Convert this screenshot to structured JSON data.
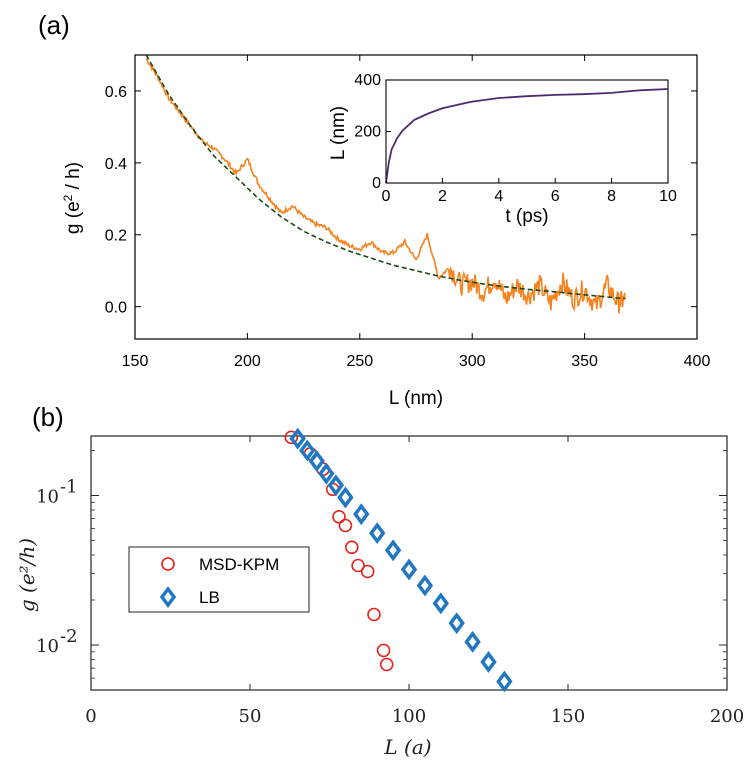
{
  "panel_a": {
    "label": "(a)",
    "main": {
      "xlabel": "L (nm)",
      "ylabel_prefix": "g (e",
      "ylabel_sup": "2",
      "ylabel_suffix": " / h)",
      "xlim": [
        150,
        400
      ],
      "ylim": [
        -0.09,
        0.7
      ],
      "xticks": [
        "150",
        "200",
        "250",
        "300",
        "350",
        "400"
      ],
      "yticks": [
        "0.0",
        "0.2",
        "0.4",
        "0.6"
      ]
    },
    "inset": {
      "xlabel": "t (ps)",
      "ylabel": "L (nm)",
      "xlim": [
        0,
        10
      ],
      "ylim": [
        0,
        400
      ],
      "xticks": [
        "0",
        "2",
        "4",
        "6",
        "8",
        "10"
      ],
      "yticks": [
        "0",
        "200",
        "400"
      ]
    }
  },
  "panel_b": {
    "label": "(b)",
    "xlabel": "L (a)",
    "ylabel": "g (e²/h)",
    "xticks": [
      "0",
      "50",
      "100",
      "150",
      "200"
    ],
    "ytick_base": "10",
    "ytick_exps": [
      "-1",
      "-2"
    ],
    "legend": [
      "MSD-KPM",
      "LB"
    ]
  },
  "colors": {
    "orange": "#f7821e",
    "fit": "#1a4a1a",
    "inset_line": "#4f2a6e",
    "msd": "#e8241e",
    "lb": "#1f78c1"
  },
  "chart_data": [
    {
      "type": "line",
      "title": "",
      "xlabel": "L (nm)",
      "ylabel": "g (e^2 / h)",
      "xlim": [
        150,
        400
      ],
      "ylim": [
        -0.09,
        0.7
      ],
      "series": [
        {
          "name": "simulation",
          "x": [
            155,
            160,
            165,
            170,
            175,
            180,
            185,
            190,
            195,
            200,
            205,
            210,
            215,
            220,
            225,
            230,
            235,
            240,
            245,
            250,
            255,
            260,
            265,
            270,
            275,
            280,
            285,
            290,
            295,
            300,
            305,
            310,
            315,
            320,
            325,
            330,
            335,
            340,
            345,
            350,
            355,
            360,
            365,
            368
          ],
          "y": [
            0.69,
            0.64,
            0.58,
            0.54,
            0.5,
            0.46,
            0.44,
            0.41,
            0.37,
            0.41,
            0.34,
            0.3,
            0.26,
            0.28,
            0.25,
            0.23,
            0.22,
            0.19,
            0.17,
            0.16,
            0.18,
            0.15,
            0.15,
            0.18,
            0.13,
            0.2,
            0.08,
            0.11,
            0.06,
            0.07,
            0.04,
            0.08,
            0.02,
            0.06,
            0.03,
            0.06,
            0.01,
            0.07,
            0.02,
            0.05,
            0.0,
            0.06,
            0.01,
            0.02
          ]
        },
        {
          "name": "fit",
          "style": "dashed",
          "x": [
            155,
            165,
            175,
            185,
            195,
            205,
            215,
            225,
            235,
            245,
            255,
            265,
            275,
            285,
            295,
            305,
            315,
            325,
            335,
            345,
            355,
            368
          ],
          "y": [
            0.7,
            0.59,
            0.5,
            0.42,
            0.36,
            0.3,
            0.25,
            0.21,
            0.18,
            0.155,
            0.135,
            0.115,
            0.1,
            0.085,
            0.073,
            0.063,
            0.055,
            0.048,
            0.042,
            0.036,
            0.03,
            0.022
          ]
        }
      ]
    },
    {
      "type": "line",
      "title": "inset",
      "xlabel": "t (ps)",
      "ylabel": "L (nm)",
      "xlim": [
        0,
        10
      ],
      "ylim": [
        0,
        400
      ],
      "x": [
        0,
        0.1,
        0.2,
        0.4,
        0.6,
        0.8,
        1,
        1.5,
        2,
        3,
        4,
        5,
        6,
        7,
        8,
        9,
        10
      ],
      "y": [
        0,
        80,
        130,
        175,
        205,
        225,
        245,
        270,
        290,
        315,
        330,
        337,
        342,
        345,
        350,
        360,
        365
      ]
    },
    {
      "type": "scatter",
      "title": "",
      "xlabel": "L (a)",
      "ylabel": "g (e^2/h)",
      "xlim": [
        0,
        200
      ],
      "ylim": [
        0.005,
        0.25
      ],
      "yscale": "log",
      "series": [
        {
          "name": "MSD-KPM",
          "marker": "circle",
          "x": [
            63,
            69,
            73,
            76,
            78,
            80,
            82,
            84,
            87,
            89,
            92,
            93
          ],
          "y": [
            0.245,
            0.19,
            0.15,
            0.11,
            0.072,
            0.063,
            0.045,
            0.034,
            0.031,
            0.016,
            0.0092,
            0.0074
          ]
        },
        {
          "name": "LB",
          "marker": "diamond",
          "x": [
            65,
            68,
            71,
            74,
            77,
            80,
            85,
            90,
            95,
            100,
            105,
            110,
            115,
            120,
            125,
            130
          ],
          "y": [
            0.24,
            0.2,
            0.17,
            0.14,
            0.117,
            0.097,
            0.075,
            0.056,
            0.043,
            0.032,
            0.025,
            0.019,
            0.014,
            0.0105,
            0.0077,
            0.0057
          ]
        }
      ]
    }
  ]
}
